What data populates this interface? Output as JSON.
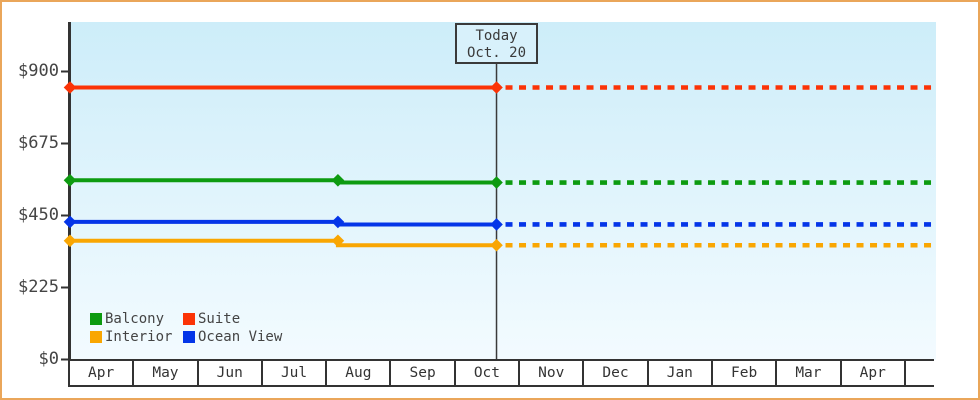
{
  "colors": {
    "frame": "#EAA65A",
    "axis": "#333333",
    "text": "#444444",
    "plot_bg_top": "#CDEDF9",
    "plot_bg_bottom": "#F3FBFF",
    "today_box_bg": "#D8F1FB",
    "today_line": "#3a3a3a"
  },
  "chart_data": {
    "type": "line",
    "description_visible": false,
    "grid": false,
    "x_axis": {
      "tick_labels": [
        "Apr",
        "May",
        "Jun",
        "Jul",
        "Aug",
        "Sep",
        "Oct",
        "Nov",
        "Dec",
        "Jan",
        "Feb",
        "Mar",
        "Apr",
        ""
      ]
    },
    "y_axis": {
      "ticks": [
        {
          "label": "$0",
          "value": 0
        },
        {
          "label": "$225",
          "value": 225
        },
        {
          "label": "$450",
          "value": 450
        },
        {
          "label": "$675",
          "value": 675
        },
        {
          "label": "$900",
          "value": 900
        }
      ],
      "range": [
        0,
        1055
      ]
    },
    "today_marker": {
      "line1": "Today",
      "line2": "Oct. 20",
      "month_index": 6,
      "day": 20
    },
    "legend": {
      "position": "bottom-left",
      "entries": [
        {
          "label": "Balcony",
          "color": "#0D9B10"
        },
        {
          "label": "Suite",
          "color": "#FB3306"
        },
        {
          "label": "Interior",
          "color": "#F9A602"
        },
        {
          "label": "Ocean View",
          "color": "#0435E8"
        }
      ]
    },
    "series": [
      {
        "name": "Suite",
        "color": "#FB3306",
        "points": [
          {
            "month_index": 0,
            "day": 1,
            "value": 850,
            "marker": true
          },
          {
            "month_index": 6,
            "day": 20,
            "value": 850,
            "marker": true
          }
        ],
        "projected_value": 850
      },
      {
        "name": "Balcony",
        "color": "#0D9B10",
        "points": [
          {
            "month_index": 0,
            "day": 1,
            "value": 560,
            "marker": true
          },
          {
            "month_index": 4,
            "day": 6,
            "value": 560,
            "marker": true
          },
          {
            "month_index": 4,
            "day": 6,
            "value": 553,
            "marker": false
          },
          {
            "month_index": 6,
            "day": 20,
            "value": 553,
            "marker": true
          }
        ],
        "projected_value": 553
      },
      {
        "name": "Ocean View",
        "color": "#0435E8",
        "points": [
          {
            "month_index": 0,
            "day": 1,
            "value": 430,
            "marker": true
          },
          {
            "month_index": 4,
            "day": 6,
            "value": 430,
            "marker": true
          },
          {
            "month_index": 4,
            "day": 6,
            "value": 422,
            "marker": false
          },
          {
            "month_index": 6,
            "day": 20,
            "value": 422,
            "marker": true
          }
        ],
        "projected_value": 422
      },
      {
        "name": "Interior",
        "color": "#F9A602",
        "points": [
          {
            "month_index": 0,
            "day": 1,
            "value": 371,
            "marker": true
          },
          {
            "month_index": 4,
            "day": 6,
            "value": 371,
            "marker": true
          },
          {
            "month_index": 4,
            "day": 6,
            "value": 357,
            "marker": false
          },
          {
            "month_index": 6,
            "day": 20,
            "value": 357,
            "marker": true
          }
        ],
        "projected_value": 357
      }
    ]
  }
}
